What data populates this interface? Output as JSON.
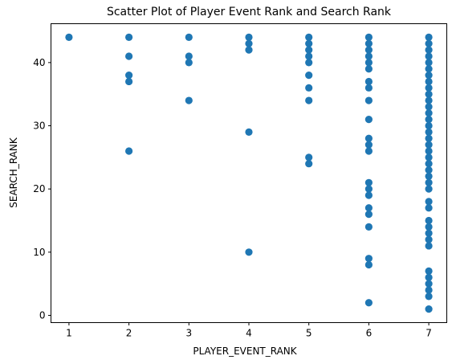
{
  "chart_data": {
    "type": "scatter",
    "title": "Scatter Plot of Player Event Rank and Search Rank",
    "xlabel": "PLAYER_EVENT_RANK",
    "ylabel": "SEARCH_RANK",
    "xlim": [
      0.7,
      7.3
    ],
    "ylim": [
      -1.15,
      46.15
    ],
    "xticks": [
      1,
      2,
      3,
      4,
      5,
      6,
      7
    ],
    "yticks": [
      0,
      10,
      20,
      30,
      40
    ],
    "grid": false,
    "marker_color": "#1f77b4",
    "series": [
      {
        "points": [
          [
            1,
            44
          ],
          [
            2,
            44
          ],
          [
            2,
            41
          ],
          [
            2,
            38
          ],
          [
            2,
            37
          ],
          [
            2,
            26
          ],
          [
            3,
            44
          ],
          [
            3,
            41
          ],
          [
            3,
            40
          ],
          [
            3,
            34
          ],
          [
            4,
            44
          ],
          [
            4,
            43
          ],
          [
            4,
            42
          ],
          [
            4,
            29
          ],
          [
            4,
            10
          ],
          [
            5,
            44
          ],
          [
            5,
            43
          ],
          [
            5,
            42
          ],
          [
            5,
            41
          ],
          [
            5,
            40
          ],
          [
            5,
            38
          ],
          [
            5,
            36
          ],
          [
            5,
            34
          ],
          [
            5,
            25
          ],
          [
            5,
            24
          ],
          [
            6,
            44
          ],
          [
            6,
            43
          ],
          [
            6,
            42
          ],
          [
            6,
            41
          ],
          [
            6,
            40
          ],
          [
            6,
            39
          ],
          [
            6,
            37
          ],
          [
            6,
            36
          ],
          [
            6,
            34
          ],
          [
            6,
            31
          ],
          [
            6,
            28
          ],
          [
            6,
            27
          ],
          [
            6,
            26
          ],
          [
            6,
            21
          ],
          [
            6,
            20
          ],
          [
            6,
            19
          ],
          [
            6,
            17
          ],
          [
            6,
            16
          ],
          [
            6,
            14
          ],
          [
            6,
            9
          ],
          [
            6,
            8
          ],
          [
            6,
            2
          ],
          [
            7,
            44
          ],
          [
            7,
            43
          ],
          [
            7,
            42
          ],
          [
            7,
            41
          ],
          [
            7,
            40
          ],
          [
            7,
            39
          ],
          [
            7,
            38
          ],
          [
            7,
            37
          ],
          [
            7,
            36
          ],
          [
            7,
            35
          ],
          [
            7,
            34
          ],
          [
            7,
            33
          ],
          [
            7,
            32
          ],
          [
            7,
            31
          ],
          [
            7,
            30
          ],
          [
            7,
            29
          ],
          [
            7,
            28
          ],
          [
            7,
            27
          ],
          [
            7,
            26
          ],
          [
            7,
            25
          ],
          [
            7,
            24
          ],
          [
            7,
            23
          ],
          [
            7,
            22
          ],
          [
            7,
            21
          ],
          [
            7,
            20
          ],
          [
            7,
            18
          ],
          [
            7,
            17
          ],
          [
            7,
            15
          ],
          [
            7,
            14
          ],
          [
            7,
            13
          ],
          [
            7,
            12
          ],
          [
            7,
            11
          ],
          [
            7,
            7
          ],
          [
            7,
            6
          ],
          [
            7,
            5
          ],
          [
            7,
            4
          ],
          [
            7,
            3
          ],
          [
            7,
            1
          ]
        ]
      }
    ]
  }
}
